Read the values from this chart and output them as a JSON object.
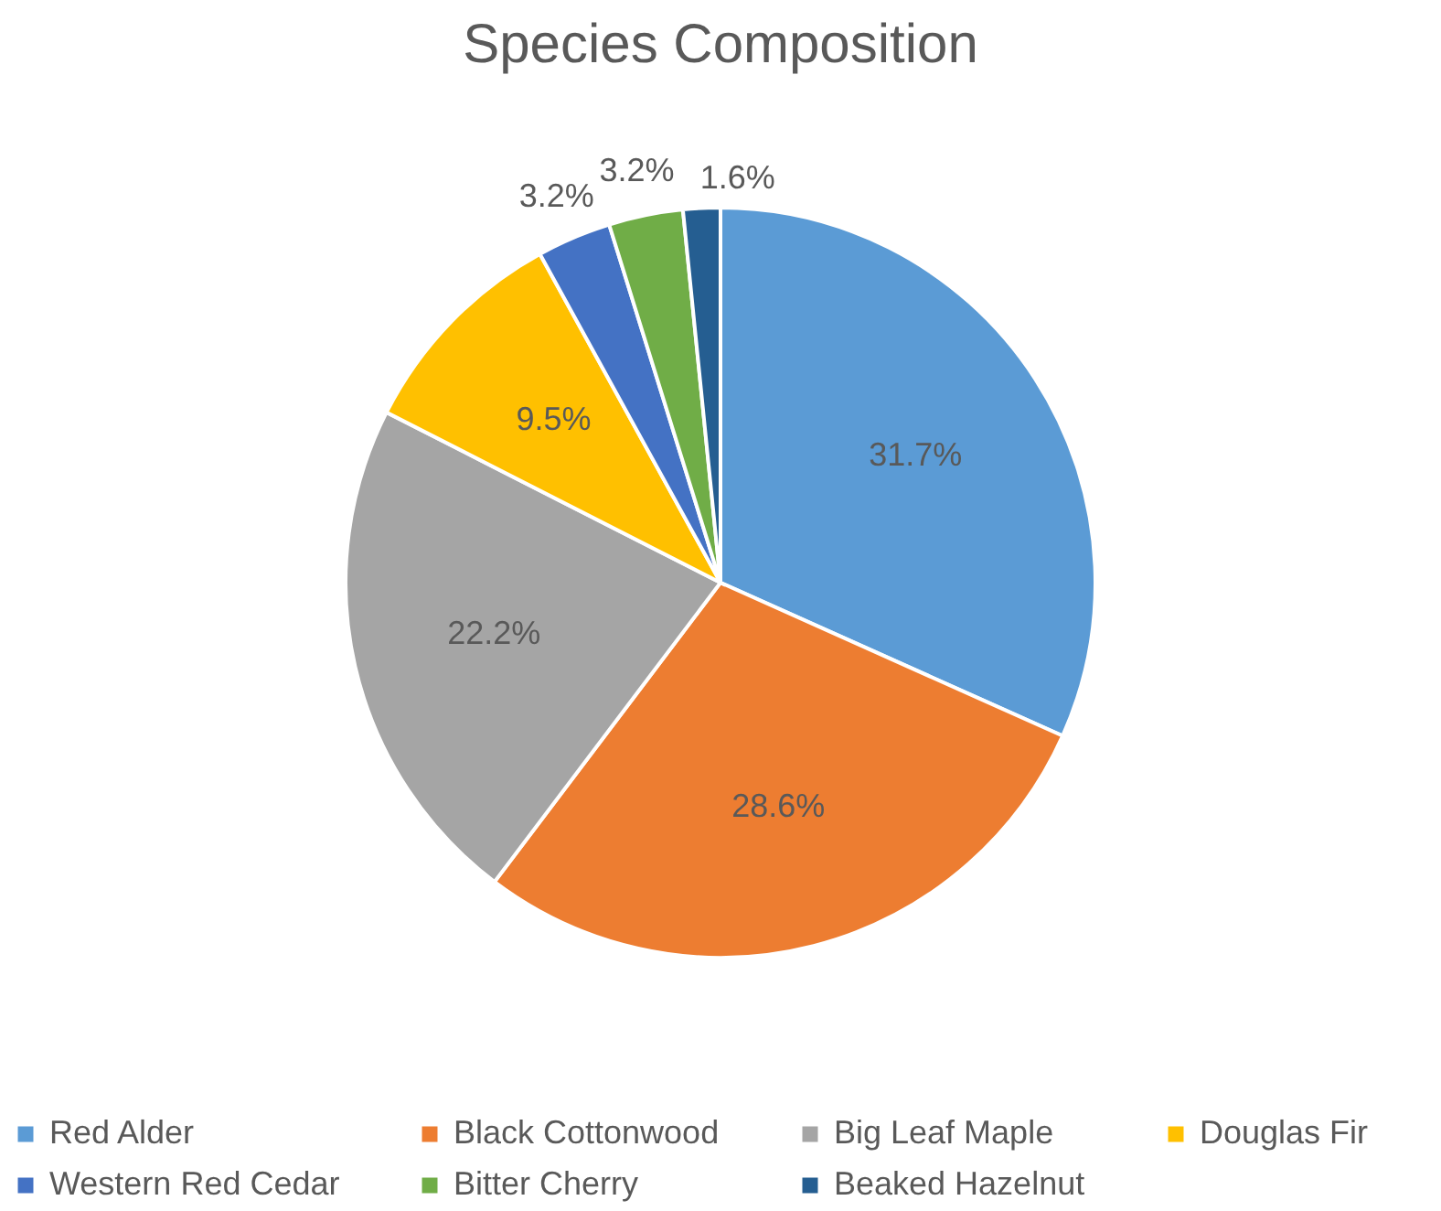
{
  "chart_data": {
    "type": "pie",
    "title": "Species Composition",
    "categories": [
      "Red Alder",
      "Black Cottonwood",
      "Big Leaf Maple",
      "Douglas Fir",
      "Western Red Cedar",
      "Bitter Cherry",
      "Beaked Hazelnut"
    ],
    "values": [
      31.7,
      28.6,
      22.2,
      9.5,
      3.2,
      3.2,
      1.6
    ],
    "value_labels": [
      "31.7%",
      "28.6%",
      "22.2%",
      "9.5%",
      "3.2%",
      "3.2%",
      "1.6%"
    ],
    "colors": [
      "#5b9bd5",
      "#ed7d31",
      "#a5a5a5",
      "#ffc000",
      "#4472c4",
      "#70ad47",
      "#255e91"
    ],
    "legend": "bottom"
  }
}
